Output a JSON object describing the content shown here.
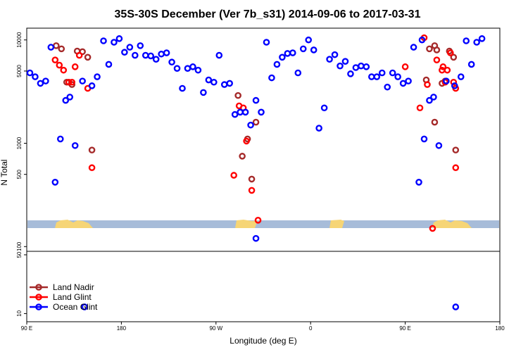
{
  "chart_data": {
    "type": "scatter",
    "title": "35S-30S December (Ver 7b_s31)   2014-09-06 to 2017-03-31",
    "xlabel": "Longitude (deg E)",
    "ylabel": "N Total",
    "y_scale": "log",
    "xlim": [
      90,
      540
    ],
    "x_ticks": [
      {
        "value": 90,
        "label": "90 E"
      },
      {
        "value": 180,
        "label": "180"
      },
      {
        "value": 270,
        "label": "90 W"
      },
      {
        "value": 360,
        "label": "0"
      },
      {
        "value": 450,
        "label": "90 E"
      },
      {
        "value": 540,
        "label": "180"
      }
    ],
    "upper_panel": {
      "ylim": [
        90,
        13000
      ],
      "y_ticks": [
        {
          "value": 100,
          "label": "100"
        },
        {
          "value": 500,
          "label": "500"
        },
        {
          "value": 1000,
          "label": "1000"
        },
        {
          "value": 5000,
          "label": "5000"
        },
        {
          "value": 10000,
          "label": "10000"
        }
      ]
    },
    "lower_panel": {
      "ylim": [
        8,
        55
      ],
      "y_ticks": [
        {
          "value": 10,
          "label": "10"
        },
        {
          "value": 50,
          "label": "50"
        }
      ]
    },
    "legend": {
      "position": "bottom-left",
      "entries": [
        {
          "label": "Land Nadir",
          "color": "#a52a2a"
        },
        {
          "label": "Land Glint",
          "color": "#ff0000"
        },
        {
          "label": "Ocean Glint",
          "color": "#0000ff"
        }
      ]
    },
    "series": [
      {
        "name": "Land Nadir",
        "color": "#a52a2a",
        "points": [
          [
            118,
            8800
          ],
          [
            123,
            8200
          ],
          [
            128,
            3900
          ],
          [
            133,
            3700
          ],
          [
            138,
            7800
          ],
          [
            143,
            7700
          ],
          [
            148,
            6800
          ],
          [
            152,
            860
          ],
          [
            291,
            2900
          ],
          [
            295,
            750
          ],
          [
            300,
            1100
          ],
          [
            304,
            450
          ],
          [
            308,
            1600
          ],
          [
            470,
            4100
          ],
          [
            473,
            8200
          ],
          [
            478,
            1600
          ],
          [
            478,
            8800
          ],
          [
            480,
            8000
          ],
          [
            485,
            3800
          ],
          [
            488,
            4000
          ],
          [
            492,
            7800
          ],
          [
            496,
            6800
          ],
          [
            498,
            860
          ]
        ]
      },
      {
        "name": "Land Glint",
        "color": "#ff0000",
        "points": [
          [
            117,
            6400
          ],
          [
            121,
            5700
          ],
          [
            125,
            5100
          ],
          [
            130,
            3900
          ],
          [
            133,
            3900
          ],
          [
            136,
            5500
          ],
          [
            140,
            7100
          ],
          [
            148,
            3400
          ],
          [
            152,
            580
          ],
          [
            287,
            490
          ],
          [
            292,
            2300
          ],
          [
            296,
            2200
          ],
          [
            299,
            1050
          ],
          [
            304,
            350
          ],
          [
            310,
            180
          ],
          [
            464,
            2200
          ],
          [
            468,
            10500
          ],
          [
            471,
            3700
          ],
          [
            476,
            150
          ],
          [
            480,
            6400
          ],
          [
            486,
            5500
          ],
          [
            490,
            5100
          ],
          [
            496,
            3900
          ],
          [
            498,
            580
          ],
          [
            450,
            5500
          ],
          [
            485,
            5100
          ],
          [
            488,
            3900
          ],
          [
            493,
            7500
          ],
          [
            498,
            3400
          ]
        ]
      },
      {
        "name": "Ocean Glint",
        "color": "#0000ff",
        "points": [
          [
            93,
            4800
          ],
          [
            98,
            4400
          ],
          [
            103,
            3800
          ],
          [
            108,
            4000
          ],
          [
            113,
            8500
          ],
          [
            117,
            420
          ],
          [
            122,
            1100
          ],
          [
            127,
            2600
          ],
          [
            131,
            2800
          ],
          [
            136,
            950
          ],
          [
            143,
            4000
          ],
          [
            152,
            3600
          ],
          [
            157,
            4400
          ],
          [
            163,
            9800
          ],
          [
            168,
            5800
          ],
          [
            173,
            9500
          ],
          [
            178,
            10300
          ],
          [
            183,
            7600
          ],
          [
            188,
            8500
          ],
          [
            193,
            7100
          ],
          [
            198,
            8800
          ],
          [
            203,
            7100
          ],
          [
            208,
            7000
          ],
          [
            213,
            6500
          ],
          [
            218,
            7300
          ],
          [
            223,
            7500
          ],
          [
            228,
            6100
          ],
          [
            233,
            5300
          ],
          [
            238,
            3400
          ],
          [
            243,
            5300
          ],
          [
            248,
            5500
          ],
          [
            253,
            5100
          ],
          [
            258,
            3100
          ],
          [
            263,
            4100
          ],
          [
            268,
            3900
          ],
          [
            273,
            7100
          ],
          [
            278,
            3700
          ],
          [
            283,
            3800
          ],
          [
            288,
            1900
          ],
          [
            293,
            2000
          ],
          [
            298,
            2000
          ],
          [
            303,
            1500
          ],
          [
            308,
            2600
          ],
          [
            313,
            2000
          ],
          [
            318,
            9500
          ],
          [
            323,
            4300
          ],
          [
            328,
            5800
          ],
          [
            333,
            6800
          ],
          [
            338,
            7400
          ],
          [
            343,
            7500
          ],
          [
            348,
            4800
          ],
          [
            353,
            8200
          ],
          [
            358,
            10000
          ],
          [
            363,
            8000
          ],
          [
            368,
            1400
          ],
          [
            373,
            2200
          ],
          [
            378,
            6500
          ],
          [
            383,
            7200
          ],
          [
            388,
            5600
          ],
          [
            393,
            6200
          ],
          [
            398,
            4700
          ],
          [
            403,
            5400
          ],
          [
            408,
            5600
          ],
          [
            413,
            5500
          ],
          [
            418,
            4400
          ],
          [
            423,
            4400
          ],
          [
            428,
            4800
          ],
          [
            433,
            3500
          ],
          [
            438,
            4800
          ],
          [
            443,
            4400
          ],
          [
            448,
            3800
          ],
          [
            453,
            4000
          ],
          [
            308,
            120
          ],
          [
            145,
            12
          ],
          [
            466,
            10000
          ],
          [
            458,
            8500
          ],
          [
            463,
            420
          ],
          [
            468,
            1100
          ],
          [
            473,
            2600
          ],
          [
            477,
            2800
          ],
          [
            482,
            950
          ],
          [
            489,
            4000
          ],
          [
            497,
            3600
          ],
          [
            503,
            4400
          ],
          [
            508,
            9800
          ],
          [
            513,
            5800
          ],
          [
            518,
            9500
          ],
          [
            523,
            10300
          ],
          [
            498,
            12
          ]
        ]
      }
    ]
  }
}
